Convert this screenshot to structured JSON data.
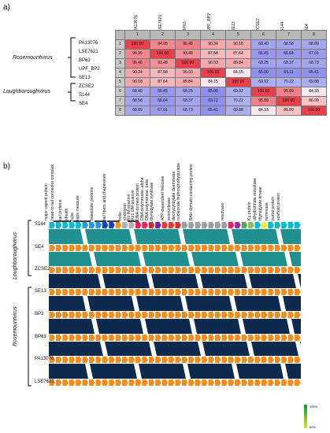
{
  "panel_a": {
    "label": "a)",
    "genomes": [
      "PA13076",
      "LSE7621",
      "BP63",
      "UPF_BP2",
      "SE13",
      "ZCSE2",
      "S144",
      "SE4"
    ],
    "row_numbers": [
      "1",
      "2",
      "3",
      "4",
      "5",
      "6",
      "7",
      "8"
    ],
    "group1": "Rosemountvirus",
    "group2": "Loughboroughvirus",
    "matrix": [
      [
        "100.00",
        "94.95",
        "96.46",
        "90.34",
        "90.18",
        "68.40",
        "68.58",
        "68.89"
      ],
      [
        "94.95",
        "100.00",
        "93.48",
        "87.58",
        "87.64",
        "66.45",
        "66.64",
        "67.01"
      ],
      [
        "96.46",
        "93.48",
        "100.00",
        "90.03",
        "89.84",
        "68.25",
        "68.37",
        "68.73"
      ],
      [
        "90.34",
        "87.58",
        "90.03",
        "100.00",
        "84.15",
        "65.00",
        "65.11",
        "65.41"
      ],
      [
        "90.18",
        "87.64",
        "89.84",
        "84.15",
        "100.00",
        "69.92",
        "70.22",
        "69.88"
      ],
      [
        "68.40",
        "66.45",
        "68.25",
        "65.00",
        "69.92",
        "100.00",
        "95.89",
        "84.33"
      ],
      [
        "68.58",
        "66.64",
        "68.37",
        "65.11",
        "70.22",
        "95.89",
        "100.00",
        "86.09"
      ],
      [
        "68.89",
        "67.01",
        "68.73",
        "65.41",
        "69.88",
        "84.33",
        "86.09",
        "100.00"
      ]
    ],
    "colors": {
      "high": "#e8404a",
      "low": "#6c6ce8",
      "mid": "#ffffff"
    }
  },
  "panel_b": {
    "label": "b)",
    "gene_labels": [
      "major capsid protein",
      "head-to-tail connector complex",
      "tail proteins",
      "sheath",
      "tube",
      "tape measure",
      "baseplate proteins",
      "tail fibers and chaperones",
      "holin",
      "endolysin",
      "Rz IM-spannin",
      "Rz1 OM-spannin",
      "DNA-domain protein",
      "DNA polymerase, alpha",
      "DNA polymerase, beta",
      "thymidylate synthase",
      "ATP-dependent helicase",
      "exonuclease",
      "deoxycytidylate deaminase",
      "nucleoside triphosphohydrolase",
      "BAH domain-containing protein",
      "resolvase",
      "Ku protein",
      "dihydrofolate reductase",
      "thymidylate kinase",
      "terminase",
      "portal protein",
      "scaffold protein"
    ],
    "tracks": [
      "S144",
      "SE4",
      "ZCSE2",
      "SE13",
      "BP2",
      "BP63",
      "PA13076",
      "LSE7621"
    ],
    "group1": "Loughboroughvirus",
    "group2": "Rosemountvirus",
    "scale_top": "100%",
    "scale_bottom": "60%"
  }
}
